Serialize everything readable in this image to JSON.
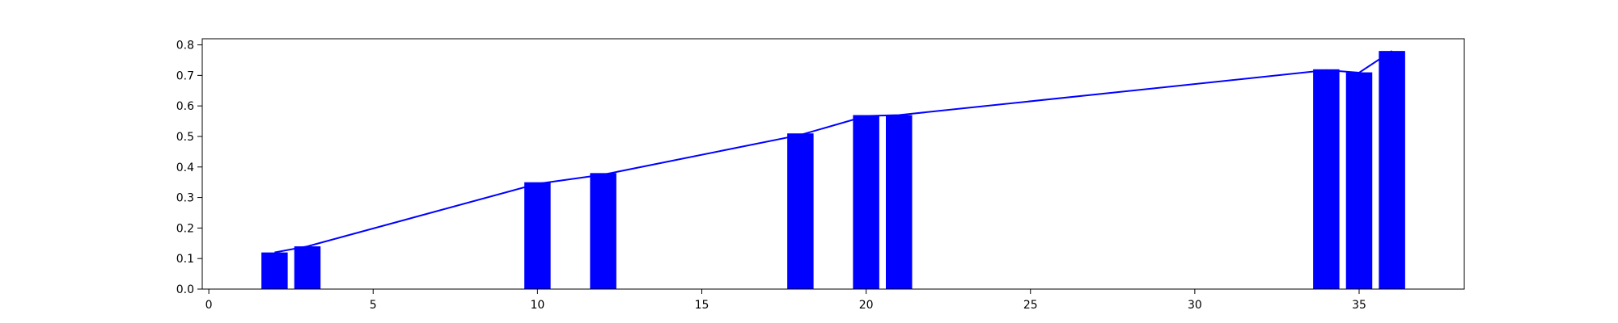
{
  "chart_data": {
    "type": "bar",
    "title": "",
    "xlabel": "",
    "ylabel": "",
    "xlim": [
      -0.2,
      38.2
    ],
    "ylim": [
      0,
      0.82
    ],
    "x_ticks": [
      0,
      5,
      10,
      15,
      20,
      25,
      30,
      35
    ],
    "y_ticks": [
      0.0,
      0.1,
      0.2,
      0.3,
      0.4,
      0.5,
      0.6,
      0.7,
      0.8
    ],
    "x_tick_labels": [
      "0",
      "5",
      "10",
      "15",
      "20",
      "25",
      "30",
      "35"
    ],
    "y_tick_labels": [
      "0.0",
      "0.1",
      "0.2",
      "0.3",
      "0.4",
      "0.5",
      "0.6",
      "0.7",
      "0.8"
    ],
    "grid": false,
    "legend": "none",
    "bar_width": 0.8,
    "bars": {
      "x": [
        2,
        3,
        10,
        12,
        18,
        20,
        21,
        34,
        35,
        36
      ],
      "values": [
        0.12,
        0.14,
        0.35,
        0.38,
        0.51,
        0.57,
        0.57,
        0.72,
        0.71,
        0.78
      ],
      "color": "#0000ff"
    },
    "line": {
      "x": [
        2,
        3,
        10,
        12,
        18,
        20,
        21,
        34,
        35,
        36
      ],
      "values": [
        0.12,
        0.14,
        0.345,
        0.375,
        0.505,
        0.567,
        0.57,
        0.717,
        0.709,
        0.78
      ],
      "color": "#0000ff"
    }
  }
}
